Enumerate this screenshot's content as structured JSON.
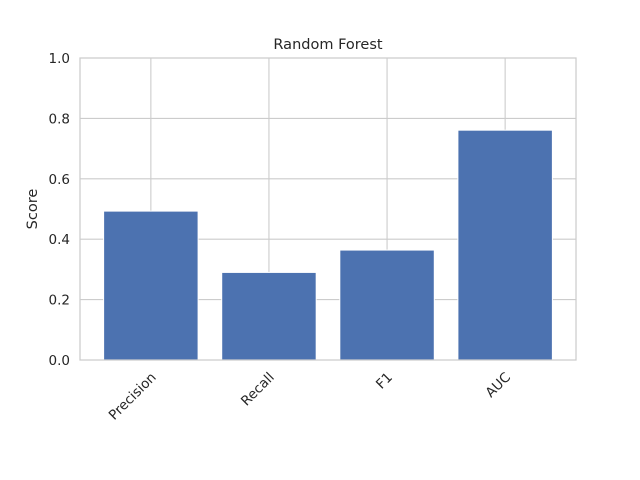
{
  "chart_data": {
    "type": "bar",
    "title": "Random Forest",
    "xlabel": "",
    "ylabel": "Score",
    "categories": [
      "Precision",
      "Recall",
      "F1",
      "AUC"
    ],
    "values": [
      0.493,
      0.29,
      0.364,
      0.761
    ],
    "ylim": [
      0,
      1
    ],
    "yticks": [
      "0.0",
      "0.2",
      "0.4",
      "0.6",
      "0.8",
      "1.0"
    ],
    "grid": true,
    "bar_color": "#4c72b0",
    "grid_color": "#cccccc",
    "axes_edge_color": "#cccccc",
    "legend": "none"
  }
}
